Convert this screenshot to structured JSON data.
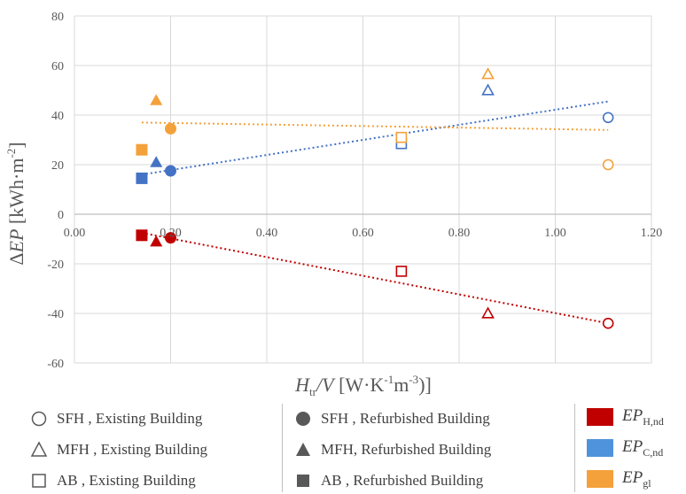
{
  "chart_data": {
    "type": "scatter",
    "xlabel": {
      "main": "H",
      "sub": "tr",
      "rest": "/V [W·K",
      "sup1": "-1",
      "mid": "m",
      "sup2": "-3",
      "end": ")]"
    },
    "ylabel": {
      "delta": "Δ",
      "ep": "EP",
      "rest": " [kWh·m",
      "sup": "-2",
      "end": "]"
    },
    "xlim": [
      0,
      1.2
    ],
    "ylim": [
      -60,
      80
    ],
    "xticks": [
      0,
      0.2,
      0.4,
      0.6,
      0.8,
      1.0,
      1.2
    ],
    "xtick_labels": [
      "0.00",
      "0.20",
      "0.40",
      "0.60",
      "0.80",
      "1.00",
      "1.20"
    ],
    "yticks": [
      -60,
      -40,
      -20,
      0,
      20,
      40,
      60,
      80
    ],
    "ytick_labels": [
      "-60",
      "-40",
      "-20",
      "0",
      "20",
      "40",
      "60",
      "80"
    ],
    "grid": true,
    "colors": {
      "H": "#c00000",
      "C": "#4472c4",
      "gl": "#f4a13b"
    },
    "series": [
      {
        "name": "EP H,nd",
        "color_key": "H",
        "points": [
          {
            "x": 0.14,
            "y": -8.5,
            "shape": "square",
            "fill": true
          },
          {
            "x": 0.17,
            "y": -11,
            "shape": "triangle",
            "fill": true
          },
          {
            "x": 0.2,
            "y": -9.5,
            "shape": "circle",
            "fill": true
          },
          {
            "x": 0.68,
            "y": -23,
            "shape": "square",
            "fill": false
          },
          {
            "x": 0.86,
            "y": -40,
            "shape": "triangle",
            "fill": false
          },
          {
            "x": 1.11,
            "y": -44,
            "shape": "circle",
            "fill": false
          }
        ],
        "trend": [
          [
            0.14,
            -7.5
          ],
          [
            1.11,
            -44
          ]
        ]
      },
      {
        "name": "EP C,nd",
        "color_key": "C",
        "points": [
          {
            "x": 0.14,
            "y": 14.5,
            "shape": "square",
            "fill": true
          },
          {
            "x": 0.17,
            "y": 21,
            "shape": "triangle",
            "fill": true
          },
          {
            "x": 0.2,
            "y": 17.5,
            "shape": "circle",
            "fill": true
          },
          {
            "x": 0.68,
            "y": 28.5,
            "shape": "square",
            "fill": false
          },
          {
            "x": 0.86,
            "y": 50,
            "shape": "triangle",
            "fill": false
          },
          {
            "x": 1.11,
            "y": 39,
            "shape": "circle",
            "fill": false
          }
        ],
        "trend": [
          [
            0.14,
            16
          ],
          [
            1.11,
            45.5
          ]
        ]
      },
      {
        "name": "EP gl",
        "color_key": "gl",
        "points": [
          {
            "x": 0.14,
            "y": 26,
            "shape": "square",
            "fill": true
          },
          {
            "x": 0.17,
            "y": 46,
            "shape": "triangle",
            "fill": true
          },
          {
            "x": 0.2,
            "y": 34.5,
            "shape": "circle",
            "fill": true
          },
          {
            "x": 0.68,
            "y": 31,
            "shape": "square",
            "fill": false
          },
          {
            "x": 0.86,
            "y": 56.5,
            "shape": "triangle",
            "fill": false
          },
          {
            "x": 1.11,
            "y": 20,
            "shape": "circle",
            "fill": false
          }
        ],
        "trend": [
          [
            0.14,
            37
          ],
          [
            1.11,
            34
          ]
        ]
      }
    ]
  },
  "legend": {
    "col1": [
      "SFH , Existing Building",
      "MFH , Existing Building",
      "AB , Existing Building"
    ],
    "col2": [
      "SFH , Refurbished Building",
      "MFH, Refurbished Building",
      "AB , Refurbished Building"
    ],
    "col3": [
      {
        "ep": "EP",
        "sub": "H,nd",
        "color": "#c00000"
      },
      {
        "ep": "EP",
        "sub": "C,nd",
        "color": "#4f93dc"
      },
      {
        "ep": "EP",
        "sub": "gl",
        "color": "#f4a13b"
      }
    ]
  }
}
